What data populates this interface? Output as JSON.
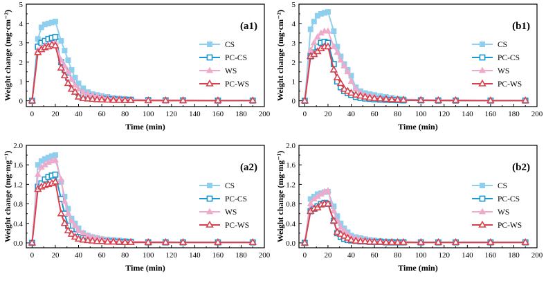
{
  "figure": {
    "colors": {
      "CS": "#8fcfee",
      "PC-CS": "#1d96cf",
      "WS": "#eeaacb",
      "PC-WS": "#d8404c",
      "axis": "#000000"
    }
  },
  "chart_data": [
    {
      "id": "a1",
      "type": "line",
      "title": "(a1)",
      "xlabel": "Time (min)",
      "ylabel": "Weight change (mg·cm⁻²)",
      "xlim": [
        -5,
        200
      ],
      "ylim": [
        -0.3,
        5
      ],
      "xticks": [
        0,
        20,
        40,
        60,
        80,
        100,
        120,
        140,
        160,
        180,
        200
      ],
      "yticks": [
        0,
        1,
        2,
        3,
        4,
        5
      ],
      "ytick_labels": [
        "0",
        "1",
        "2",
        "3",
        "4",
        "5"
      ],
      "legend_position": "center-right",
      "x": [
        0,
        5,
        8,
        11,
        14,
        17,
        20,
        25,
        28,
        31,
        34,
        37,
        40,
        44,
        48,
        52,
        56,
        60,
        65,
        70,
        75,
        80,
        85,
        100,
        115,
        130,
        160,
        190
      ],
      "series": [
        {
          "name": "CS",
          "marker": "square-filled",
          "values": [
            0,
            3.2,
            3.8,
            3.95,
            4.0,
            4.05,
            4.1,
            3.1,
            2.6,
            2.1,
            1.6,
            1.2,
            0.9,
            0.65,
            0.45,
            0.35,
            0.3,
            0.25,
            0.2,
            0.15,
            0.12,
            0.1,
            0.08,
            0.05,
            0.04,
            0.03,
            0.02,
            0.02
          ]
        },
        {
          "name": "PC-CS",
          "marker": "square-open",
          "values": [
            0,
            2.8,
            3.0,
            3.1,
            3.2,
            3.25,
            3.3,
            2.0,
            1.6,
            1.2,
            0.9,
            0.6,
            0.4,
            0.3,
            0.25,
            0.2,
            0.15,
            0.12,
            0.1,
            0.08,
            0.06,
            0.05,
            0.04,
            0.03,
            0.02,
            0.02,
            0.01,
            0.01
          ]
        },
        {
          "name": "WS",
          "marker": "triangle-filled",
          "values": [
            0,
            2.6,
            2.75,
            2.85,
            2.9,
            2.95,
            3.0,
            2.1,
            1.8,
            1.5,
            1.1,
            0.8,
            0.6,
            0.45,
            0.35,
            0.3,
            0.25,
            0.2,
            0.15,
            0.12,
            0.1,
            0.08,
            0.06,
            0.05,
            0.04,
            0.03,
            0.02,
            0.02
          ]
        },
        {
          "name": "PC-WS",
          "marker": "triangle-open",
          "values": [
            0,
            2.5,
            2.65,
            2.75,
            2.8,
            2.9,
            2.85,
            1.7,
            1.3,
            0.9,
            0.6,
            0.45,
            0.2,
            0.12,
            0.1,
            0.08,
            0.06,
            0.05,
            0.04,
            0.03,
            0.03,
            0.02,
            0.02,
            0.01,
            0.01,
            0.01,
            0.01,
            0.01
          ]
        }
      ]
    },
    {
      "id": "b1",
      "type": "line",
      "title": "(b1)",
      "xlabel": "Time (min)",
      "ylabel": "Weight change (mg·cm⁻²)",
      "xlim": [
        -5,
        200
      ],
      "ylim": [
        -0.3,
        5
      ],
      "xticks": [
        0,
        20,
        40,
        60,
        80,
        100,
        120,
        140,
        160,
        180,
        200
      ],
      "yticks": [
        0,
        1,
        2,
        3,
        4,
        5
      ],
      "ytick_labels": [
        "0",
        "1",
        "2",
        "3",
        "4",
        "5"
      ],
      "legend_position": "center-right",
      "x": [
        0,
        5,
        8,
        11,
        14,
        17,
        20,
        25,
        28,
        31,
        34,
        37,
        40,
        44,
        48,
        52,
        56,
        60,
        65,
        70,
        75,
        80,
        85,
        100,
        115,
        130,
        160,
        190
      ],
      "series": [
        {
          "name": "CS",
          "marker": "square-filled",
          "values": [
            0,
            3.7,
            4.1,
            4.4,
            4.5,
            4.55,
            4.6,
            3.6,
            2.8,
            2.3,
            1.9,
            1.6,
            1.3,
            0.7,
            0.5,
            0.4,
            0.35,
            0.3,
            0.25,
            0.2,
            0.15,
            0.1,
            0.08,
            0.05,
            0.04,
            0.03,
            0.02,
            0.02
          ]
        },
        {
          "name": "PC-CS",
          "marker": "square-open",
          "values": [
            0,
            2.3,
            2.5,
            2.8,
            3.0,
            3.05,
            3.0,
            1.9,
            1.0,
            0.7,
            0.5,
            0.4,
            0.3,
            0.2,
            0.15,
            0.12,
            0.1,
            0.08,
            0.06,
            0.05,
            0.04,
            0.03,
            0.02,
            0.02,
            0.01,
            0.01,
            0.01,
            0.01
          ]
        },
        {
          "name": "WS",
          "marker": "triangle-filled",
          "values": [
            0,
            2.6,
            3.0,
            3.3,
            3.5,
            3.6,
            3.6,
            2.8,
            2.5,
            2.1,
            1.8,
            1.5,
            1.0,
            0.6,
            0.4,
            0.3,
            0.25,
            0.2,
            0.15,
            0.12,
            0.1,
            0.08,
            0.06,
            0.05,
            0.04,
            0.03,
            0.02,
            0.02
          ]
        },
        {
          "name": "PC-WS",
          "marker": "triangle-open",
          "values": [
            0,
            2.3,
            2.4,
            2.55,
            2.7,
            2.8,
            2.8,
            1.6,
            1.2,
            0.9,
            0.6,
            0.5,
            0.4,
            0.3,
            0.25,
            0.2,
            0.15,
            0.12,
            0.1,
            0.08,
            0.06,
            0.05,
            0.04,
            0.03,
            0.02,
            0.02,
            0.01,
            0.01
          ]
        }
      ]
    },
    {
      "id": "a2",
      "type": "line",
      "title": "(a2)",
      "xlabel": "Time (min)",
      "ylabel": "Weight change (mg·mg⁻¹)",
      "xlim": [
        -5,
        200
      ],
      "ylim": [
        -0.1,
        2.0
      ],
      "xticks": [
        0,
        20,
        40,
        60,
        80,
        100,
        120,
        140,
        160,
        180,
        200
      ],
      "yticks": [
        0,
        0.4,
        0.8,
        1.2,
        1.6,
        2.0
      ],
      "ytick_labels": [
        "0.0",
        "0.4",
        "0.8",
        "1.2",
        "1.6",
        "2.0"
      ],
      "legend_position": "center-right",
      "x": [
        0,
        5,
        8,
        11,
        14,
        17,
        20,
        25,
        28,
        31,
        34,
        37,
        40,
        44,
        48,
        52,
        56,
        60,
        65,
        70,
        75,
        80,
        85,
        100,
        115,
        130,
        160,
        190
      ],
      "series": [
        {
          "name": "CS",
          "marker": "square-filled",
          "values": [
            0,
            1.6,
            1.68,
            1.72,
            1.75,
            1.78,
            1.8,
            1.25,
            0.95,
            0.7,
            0.5,
            0.4,
            0.3,
            0.2,
            0.15,
            0.12,
            0.1,
            0.08,
            0.07,
            0.06,
            0.05,
            0.04,
            0.03,
            0.02,
            0.02,
            0.01,
            0.01,
            0.01
          ]
        },
        {
          "name": "PC-CS",
          "marker": "square-open",
          "values": [
            0,
            1.15,
            1.22,
            1.3,
            1.35,
            1.38,
            1.4,
            0.9,
            0.6,
            0.35,
            0.25,
            0.18,
            0.12,
            0.1,
            0.08,
            0.06,
            0.05,
            0.04,
            0.03,
            0.03,
            0.02,
            0.02,
            0.02,
            0.01,
            0.01,
            0.01,
            0.01,
            0.01
          ]
        },
        {
          "name": "WS",
          "marker": "triangle-filled",
          "values": [
            0,
            1.4,
            1.55,
            1.6,
            1.65,
            1.68,
            1.7,
            1.3,
            0.85,
            0.6,
            0.45,
            0.35,
            0.25,
            0.2,
            0.15,
            0.12,
            0.1,
            0.08,
            0.06,
            0.05,
            0.04,
            0.03,
            0.03,
            0.02,
            0.02,
            0.01,
            0.01,
            0.01
          ]
        },
        {
          "name": "PC-WS",
          "marker": "triangle-open",
          "values": [
            0,
            1.1,
            1.15,
            1.18,
            1.2,
            1.22,
            1.25,
            0.6,
            0.4,
            0.25,
            0.18,
            0.12,
            0.08,
            0.06,
            0.05,
            0.04,
            0.03,
            0.03,
            0.02,
            0.02,
            0.02,
            0.01,
            0.01,
            0.01,
            0.01,
            0.01,
            0.01,
            0.01
          ]
        }
      ]
    },
    {
      "id": "b2",
      "type": "line",
      "title": "(b2)",
      "xlabel": "Time (min)",
      "ylabel": "Weight change (mg·mg⁻¹)",
      "xlim": [
        -5,
        200
      ],
      "ylim": [
        -0.1,
        2.0
      ],
      "xticks": [
        0,
        20,
        40,
        60,
        80,
        100,
        120,
        140,
        160,
        180,
        200
      ],
      "yticks": [
        0,
        0.4,
        0.8,
        1.2,
        1.6,
        2.0
      ],
      "ytick_labels": [
        "0.0",
        "0.4",
        "0.8",
        "1.2",
        "1.6",
        "2.0"
      ],
      "legend_position": "center-right",
      "x": [
        0,
        5,
        8,
        11,
        14,
        17,
        20,
        25,
        28,
        31,
        34,
        37,
        40,
        44,
        48,
        52,
        56,
        60,
        65,
        70,
        75,
        80,
        85,
        100,
        115,
        130,
        160,
        190
      ],
      "series": [
        {
          "name": "CS",
          "marker": "square-filled",
          "values": [
            0,
            0.9,
            0.95,
            1.0,
            1.02,
            1.04,
            1.05,
            0.75,
            0.55,
            0.4,
            0.3,
            0.22,
            0.15,
            0.12,
            0.1,
            0.08,
            0.06,
            0.05,
            0.04,
            0.03,
            0.03,
            0.02,
            0.02,
            0.01,
            0.01,
            0.01,
            0.01,
            0.01
          ]
        },
        {
          "name": "PC-CS",
          "marker": "square-open",
          "values": [
            0,
            0.65,
            0.7,
            0.75,
            0.8,
            0.82,
            0.8,
            0.45,
            0.2,
            0.12,
            0.08,
            0.06,
            0.05,
            0.04,
            0.03,
            0.03,
            0.02,
            0.02,
            0.02,
            0.01,
            0.01,
            0.01,
            0.01,
            0.01,
            0.01,
            0.01,
            0.01,
            0.01
          ]
        },
        {
          "name": "WS",
          "marker": "triangle-filled",
          "values": [
            0,
            0.8,
            0.9,
            0.95,
            1.0,
            1.05,
            1.07,
            0.65,
            0.45,
            0.32,
            0.25,
            0.18,
            0.12,
            0.1,
            0.08,
            0.06,
            0.05,
            0.04,
            0.03,
            0.03,
            0.02,
            0.02,
            0.02,
            0.01,
            0.01,
            0.01,
            0.01,
            0.01
          ]
        },
        {
          "name": "PC-WS",
          "marker": "triangle-open",
          "values": [
            0,
            0.65,
            0.7,
            0.72,
            0.78,
            0.8,
            0.8,
            0.45,
            0.22,
            0.18,
            0.14,
            0.1,
            0.06,
            0.04,
            0.03,
            0.03,
            0.02,
            0.02,
            0.02,
            0.01,
            0.01,
            0.01,
            0.01,
            0.01,
            0.01,
            0.01,
            0.01,
            0.01
          ]
        }
      ]
    }
  ]
}
